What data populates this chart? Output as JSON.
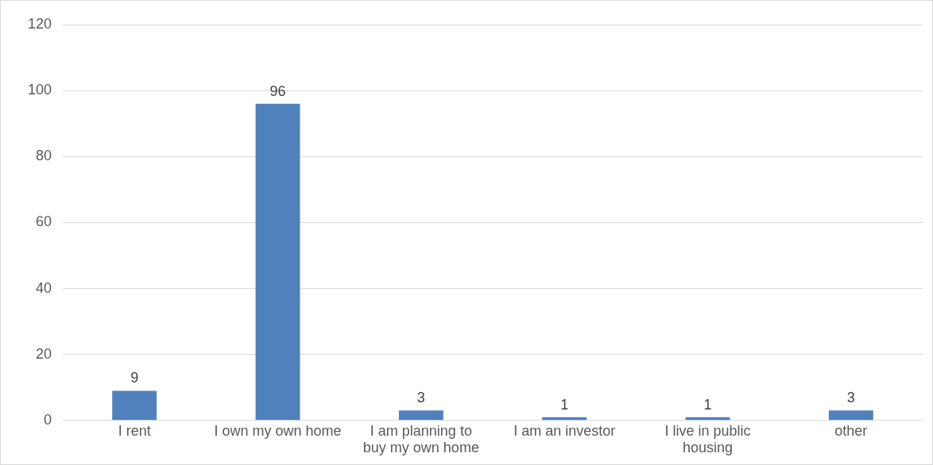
{
  "chart_data": {
    "type": "bar",
    "categories": [
      "I rent",
      "I own my own home",
      "I am planning to buy my own home",
      "I am an investor",
      "I live in public housing",
      "other"
    ],
    "values": [
      9,
      96,
      3,
      1,
      1,
      3
    ],
    "color": "#4f81bd",
    "ylim": [
      0,
      120
    ],
    "yticks": [
      0,
      20,
      40,
      60,
      80,
      100,
      120
    ],
    "grid": "y",
    "data_labels": true,
    "legend": false
  }
}
